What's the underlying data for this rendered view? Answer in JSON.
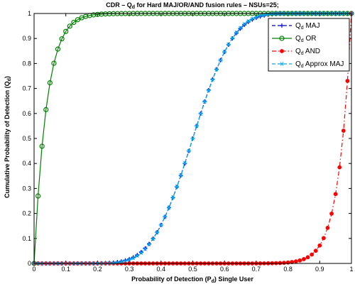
{
  "chart_data": {
    "type": "line",
    "title": {
      "pre": "CDR – Q",
      "sub": "d",
      "post": " for Hard MAJ/OR/AND fusion rules – NSUs=25;"
    },
    "xlabel": {
      "pre": "Probability of Detection (P",
      "sub": "d",
      "post": ") Single User"
    },
    "ylabel": {
      "pre": "Cumulative Probability of Detection (Q",
      "sub": "d",
      "post": ")"
    },
    "xlim": [
      0,
      1
    ],
    "ylim": [
      0,
      1
    ],
    "x_ticks": [
      "0",
      "0.1",
      "0.2",
      "0.3",
      "0.4",
      "0.5",
      "0.6",
      "0.7",
      "0.8",
      "0.9",
      "1"
    ],
    "y_ticks": [
      "0",
      "0.1",
      "0.2",
      "0.3",
      "0.4",
      "0.5",
      "0.6",
      "0.7",
      "0.8",
      "0.9",
      "1"
    ],
    "grid": false,
    "legend_position": "top-right",
    "n_sensors": 25,
    "pd_step": 0.0125,
    "series": [
      {
        "name_pre": "Q",
        "name_sub": "d",
        "name_post": " MAJ",
        "rule": "majority",
        "color": "#0000cc",
        "marker": "plus",
        "line": "dashed"
      },
      {
        "name_pre": "Q",
        "name_sub": "d",
        "name_post": " OR",
        "rule": "or",
        "color": "#008000",
        "marker": "circle",
        "line": "solid"
      },
      {
        "name_pre": "Q",
        "name_sub": "d",
        "name_post": " AND",
        "rule": "and",
        "color": "#ff0000",
        "marker": "dot",
        "line": "dashdot"
      },
      {
        "name_pre": "Q",
        "name_sub": "d",
        "name_post": " Approx MAJ",
        "rule": "majority-approx",
        "color": "#00aaee",
        "marker": "asterisk",
        "line": "dashed"
      }
    ]
  }
}
